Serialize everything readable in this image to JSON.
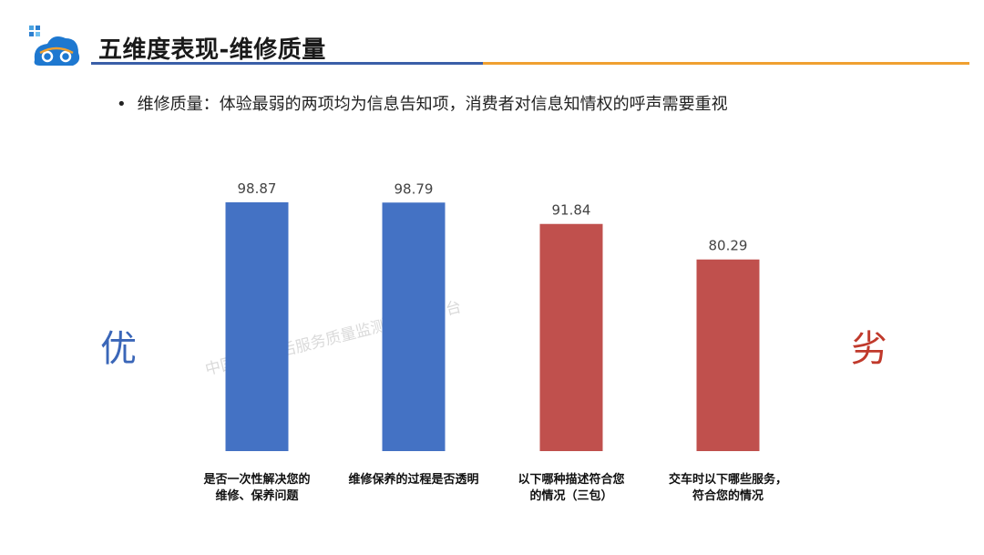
{
  "header": {
    "title": "五维度表现-维修质量",
    "logo_icon": "car-cloud-logo-icon",
    "rule_colors": [
      "#3a5fa8",
      "#f0a030"
    ]
  },
  "bullet": {
    "text": "维修质量：体验最弱的两项均为信息告知项，消费者对信息知情权的呼声需要重视"
  },
  "side_labels": {
    "good": "优",
    "bad": "劣",
    "good_color": "#3a66b8",
    "bad_color": "#c0392b"
  },
  "watermark": "中国汽车售后服务质量监测大数据平台",
  "chart_data": {
    "type": "bar",
    "categories": [
      "是否一次性解决您的维修、保养问题",
      "维修保养的过程是否透明",
      "以下哪种描述符合您的情况（三包）",
      "交车时以下哪些服务，符合您的情况"
    ],
    "category_lines": [
      [
        "是否一次性解决您的",
        "维修、保养问题"
      ],
      [
        "维修保养的过程是否透明"
      ],
      [
        "以下哪种描述符合您",
        "的情况（三包）"
      ],
      [
        "交车时以下哪些服务，",
        "符合您的情况"
      ]
    ],
    "values": [
      98.87,
      98.79,
      91.84,
      80.29
    ],
    "value_labels": [
      "98.87",
      "98.79",
      "91.84",
      "80.29"
    ],
    "colors": [
      "#4472c4",
      "#4472c4",
      "#c0504d",
      "#c0504d"
    ],
    "title": "",
    "xlabel": "",
    "ylabel": "",
    "grid": false
  }
}
